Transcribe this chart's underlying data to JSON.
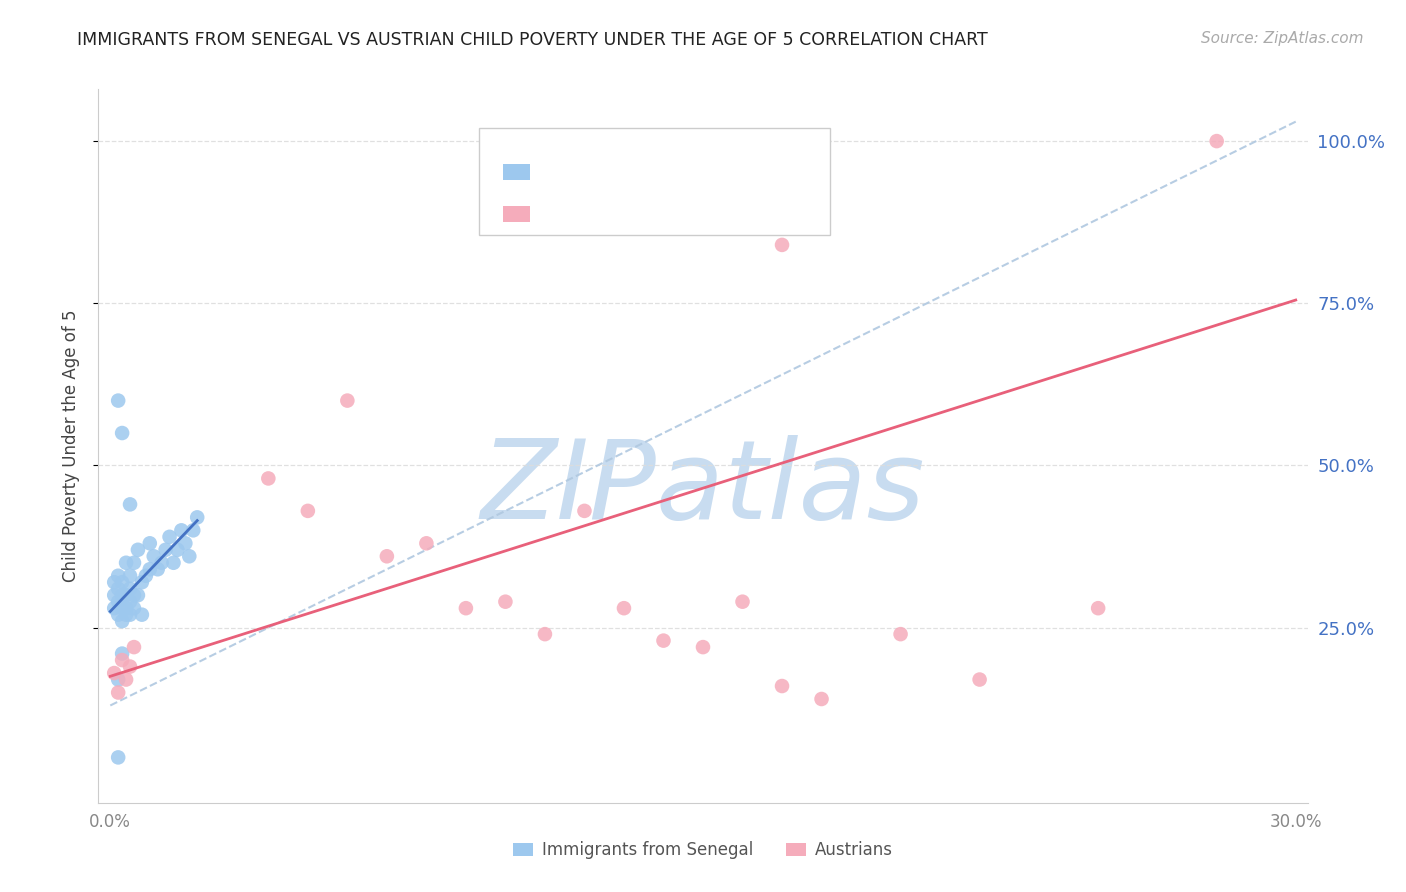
{
  "title": "IMMIGRANTS FROM SENEGAL VS AUSTRIAN CHILD POVERTY UNDER THE AGE OF 5 CORRELATION CHART",
  "source": "Source: ZipAtlas.com",
  "ylabel": "Child Poverty Under the Age of 5",
  "right_ytick_labels": [
    "25.0%",
    "50.0%",
    "75.0%",
    "100.0%"
  ],
  "right_ytick_values": [
    0.25,
    0.5,
    0.75,
    1.0
  ],
  "xlim_min": 0.0,
  "xlim_max": 0.3,
  "ylim_min": -0.02,
  "ylim_max": 1.08,
  "legend_label1": "Immigrants from Senegal",
  "legend_label2": "Austrians",
  "blue_dot_color": "#9DC8EE",
  "blue_line_color": "#4472C4",
  "pink_dot_color": "#F5ACBB",
  "pink_line_color": "#E8607A",
  "dashed_line_color": "#B0C8E0",
  "watermark_text": "ZIPatlas",
  "watermark_color": "#C8DCF0",
  "title_color": "#222222",
  "right_axis_color": "#4472C4",
  "legend_R_color": "#E8607A",
  "legend_N_color": "#4472C4",
  "grid_color": "#DDDDDD",
  "spine_color": "#CCCCCC",
  "tick_color": "#888888",
  "blue_x": [
    0.001,
    0.001,
    0.001,
    0.002,
    0.002,
    0.002,
    0.002,
    0.002,
    0.003,
    0.003,
    0.003,
    0.003,
    0.003,
    0.004,
    0.004,
    0.004,
    0.004,
    0.005,
    0.005,
    0.005,
    0.005,
    0.006,
    0.006,
    0.006,
    0.007,
    0.007,
    0.008,
    0.008,
    0.009,
    0.01,
    0.01,
    0.011,
    0.012,
    0.013,
    0.014,
    0.015,
    0.016,
    0.017,
    0.018,
    0.019,
    0.02,
    0.021,
    0.022,
    0.002,
    0.003,
    0.005,
    0.002
  ],
  "blue_y": [
    0.28,
    0.3,
    0.32,
    0.27,
    0.29,
    0.31,
    0.33,
    0.17,
    0.26,
    0.28,
    0.3,
    0.32,
    0.21,
    0.28,
    0.3,
    0.27,
    0.35,
    0.29,
    0.31,
    0.27,
    0.33,
    0.28,
    0.3,
    0.35,
    0.3,
    0.37,
    0.27,
    0.32,
    0.33,
    0.34,
    0.38,
    0.36,
    0.34,
    0.35,
    0.37,
    0.39,
    0.35,
    0.37,
    0.4,
    0.38,
    0.36,
    0.4,
    0.42,
    0.6,
    0.55,
    0.44,
    0.05
  ],
  "pink_x": [
    0.001,
    0.002,
    0.003,
    0.004,
    0.005,
    0.006,
    0.04,
    0.05,
    0.06,
    0.07,
    0.08,
    0.09,
    0.1,
    0.11,
    0.12,
    0.13,
    0.14,
    0.15,
    0.16,
    0.17,
    0.18,
    0.2,
    0.22,
    0.25,
    0.17,
    0.28
  ],
  "pink_y": [
    0.18,
    0.15,
    0.2,
    0.17,
    0.19,
    0.22,
    0.48,
    0.43,
    0.6,
    0.36,
    0.38,
    0.28,
    0.29,
    0.24,
    0.43,
    0.28,
    0.23,
    0.22,
    0.29,
    0.16,
    0.14,
    0.24,
    0.17,
    0.28,
    0.84,
    1.0
  ],
  "blue_line_x0": 0.0,
  "blue_line_x1": 0.022,
  "blue_line_y0": 0.275,
  "blue_line_y1": 0.415,
  "pink_line_x0": 0.0,
  "pink_line_x1": 0.3,
  "pink_line_y0": 0.175,
  "pink_line_y1": 0.755,
  "dash_line_x0": 0.0,
  "dash_line_x1": 0.3,
  "dash_line_y0": 0.13,
  "dash_line_y1": 1.03
}
